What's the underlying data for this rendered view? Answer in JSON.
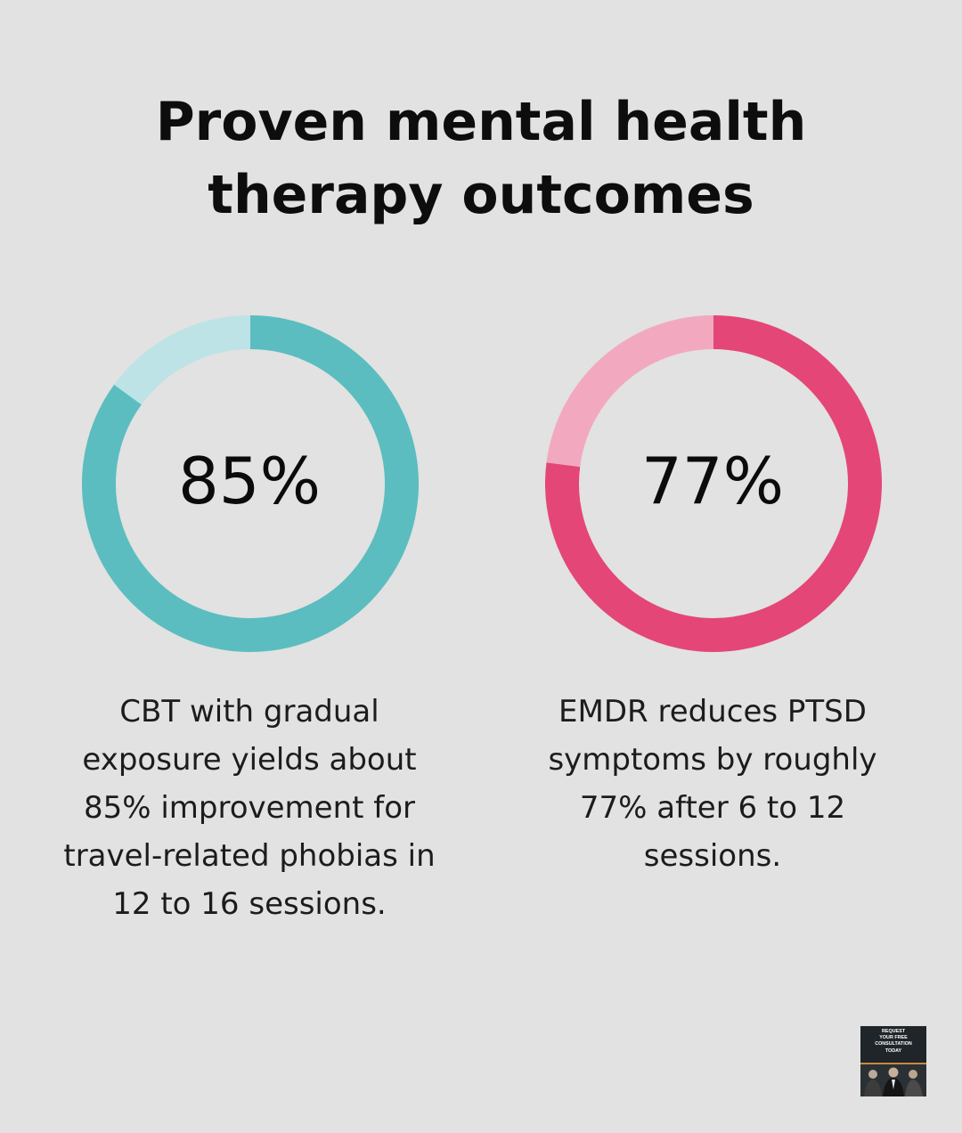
{
  "title": "Proven mental health\ntherapy outcomes",
  "chart_data": [
    {
      "type": "pie",
      "variant": "donut",
      "value_label": "85%",
      "values": [
        85,
        15
      ],
      "categories": [
        "",
        ""
      ],
      "colors": [
        "#5bbdc0",
        "#bde3e6"
      ],
      "caption": "CBT with gradual exposure yields about 85% improvement for travel-related phobias in 12 to 16 sessions."
    },
    {
      "type": "pie",
      "variant": "donut",
      "value_label": "77%",
      "values": [
        77,
        23
      ],
      "categories": [
        "",
        ""
      ],
      "colors": [
        "#e44677",
        "#f2a9bf"
      ],
      "caption": "EMDR reduces PTSD symptoms by roughly 77% after 6 to 12 sessions."
    }
  ],
  "cta": {
    "text": "REQUEST\nYOUR FREE\nCONSULTATION\nTODAY",
    "accent": "#c58a3d",
    "background": "#1f2529"
  },
  "colors": {
    "background": "#e1e2e1",
    "text": "#111111"
  }
}
